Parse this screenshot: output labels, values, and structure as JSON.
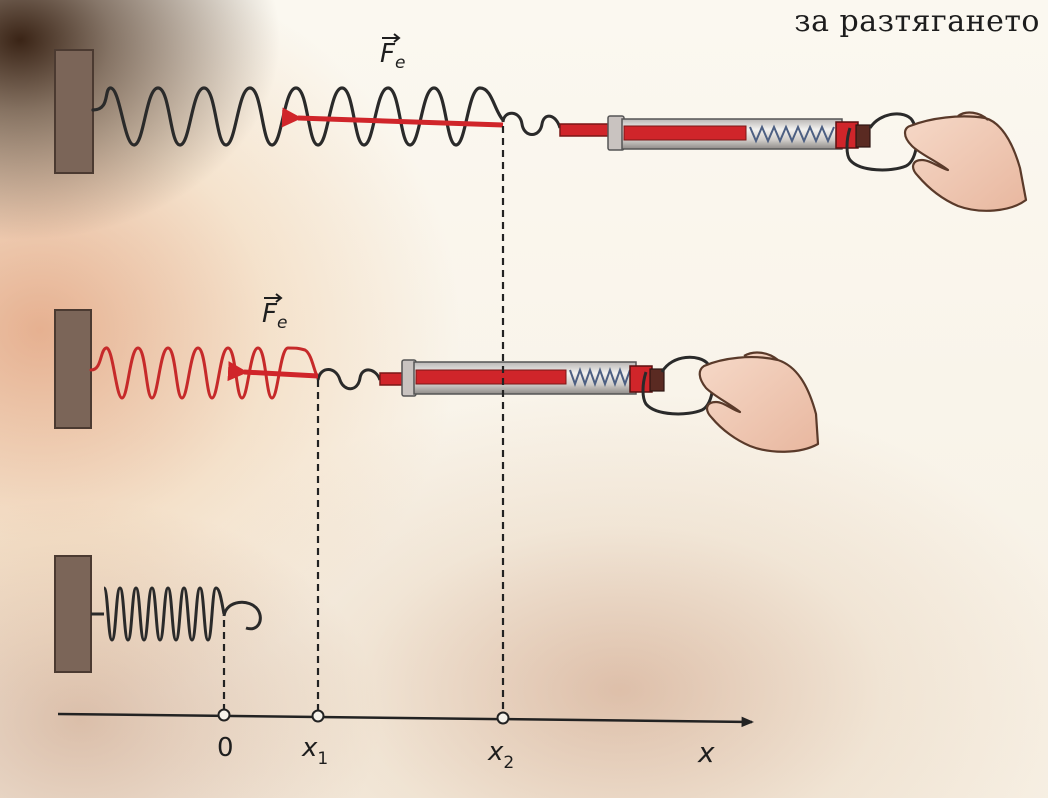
{
  "caption": "за разтягането",
  "force_label": {
    "base": "F",
    "sub": "e"
  },
  "axis": {
    "name": "x",
    "ticks": [
      {
        "base": "0",
        "sub": ""
      },
      {
        "base": "x",
        "sub": "1"
      },
      {
        "base": "x",
        "sub": "2"
      }
    ]
  },
  "colors": {
    "force_arrow": "#d0252a",
    "spring": "#2a2a2a",
    "wall": "#7b6558",
    "axis": "#222222"
  },
  "icons": [
    "wall-mount",
    "spring",
    "spring-scale",
    "hand",
    "force-arrow"
  ]
}
